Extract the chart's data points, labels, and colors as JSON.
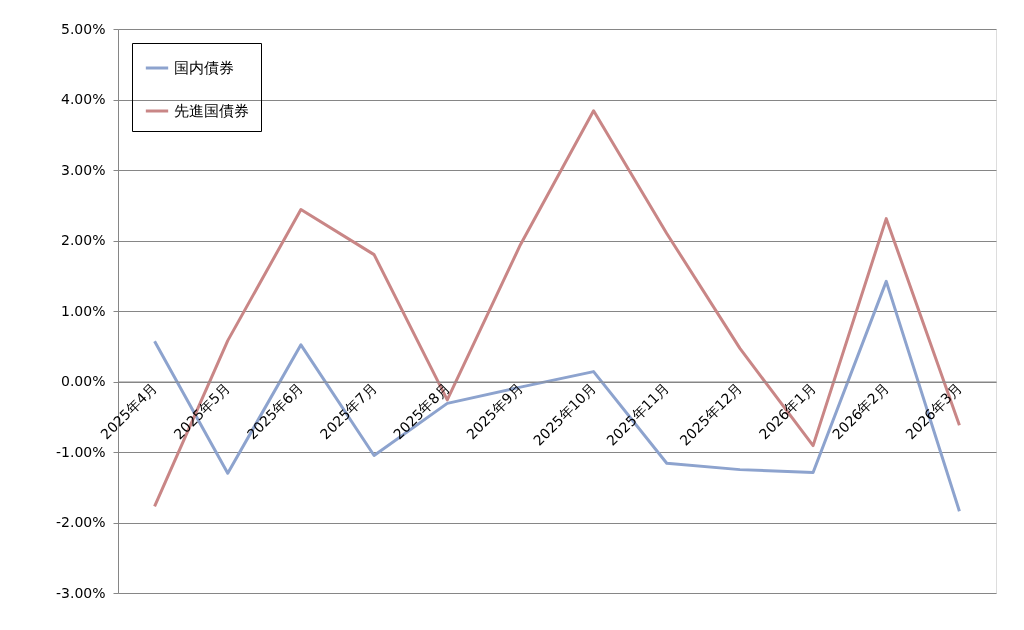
{
  "chart_data": {
    "type": "line",
    "categories": [
      "2025年4月",
      "2025年5月",
      "2025年6月",
      "2025年7月",
      "2025年8月",
      "2025年9月",
      "2025年10月",
      "2025年11月",
      "2025年12月",
      "2026年1月",
      "2026年2月",
      "2026年3月"
    ],
    "series": [
      {
        "name": "国内債券",
        "color": "#8da3ce",
        "values": [
          0.57,
          -1.3,
          0.52,
          -1.05,
          -0.31,
          -0.08,
          0.14,
          -1.16,
          -1.25,
          -1.29,
          1.42,
          -1.84
        ]
      },
      {
        "name": "先進国債券",
        "color": "#c98686",
        "values": [
          -1.77,
          0.58,
          2.44,
          1.8,
          -0.26,
          1.94,
          3.84,
          2.1,
          0.47,
          -0.91,
          2.31,
          -0.62
        ]
      }
    ],
    "ylim": [
      -3,
      5
    ],
    "yticks": [
      {
        "value": -3,
        "label": "-3.00%"
      },
      {
        "value": -2,
        "label": "-2.00%"
      },
      {
        "value": -1,
        "label": "-1.00%"
      },
      {
        "value": 0,
        "label": "0.00%"
      },
      {
        "value": 1,
        "label": "1.00%"
      },
      {
        "value": 2,
        "label": "2.00%"
      },
      {
        "value": 3,
        "label": "3.00%"
      },
      {
        "value": 4,
        "label": "4.00%"
      },
      {
        "value": 5,
        "label": "5.00%"
      }
    ],
    "grid": "y",
    "legend": "top left",
    "marker": "none",
    "line_style": "solid"
  }
}
